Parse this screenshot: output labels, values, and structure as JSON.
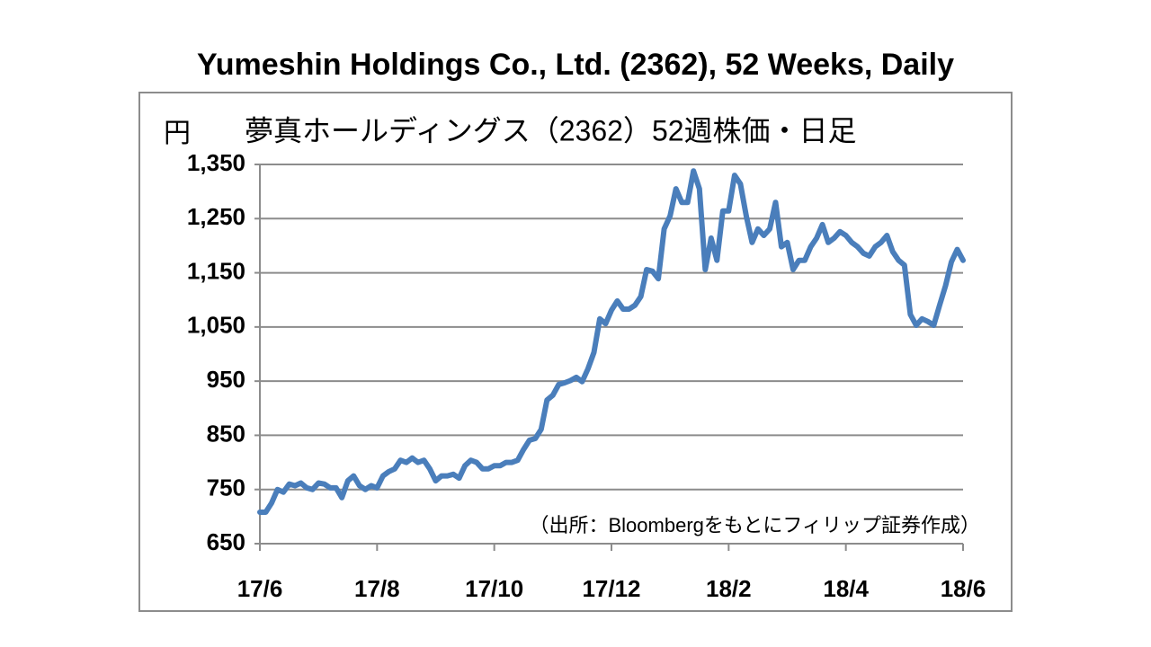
{
  "chart_data": {
    "type": "line",
    "title": "Yumeshin Holdings Co., Ltd. (2362), 52 Weeks, Daily",
    "subtitle": "夢真ホールディングス（2362）52週株価・日足",
    "y_label": "円",
    "annotation": "（出所：Bloombergをもとにフィリップ証券作成）",
    "color": "#4a7ebb",
    "grid": true,
    "ylim": [
      650,
      1350
    ],
    "yticks": [
      650,
      750,
      850,
      950,
      {
        "value": 1050,
        "label": "1,050"
      },
      {
        "value": 1150,
        "label": "1,150"
      },
      {
        "value": 1250,
        "label": "1,250"
      },
      {
        "value": 1350,
        "label": "1,350"
      }
    ],
    "categories": [
      "17/6",
      null,
      null,
      null,
      null,
      null,
      null,
      null,
      null,
      null,
      null,
      null,
      null,
      null,
      null,
      null,
      null,
      null,
      null,
      null,
      "17/8",
      null,
      null,
      null,
      null,
      null,
      null,
      null,
      null,
      null,
      null,
      null,
      null,
      null,
      null,
      null,
      null,
      null,
      null,
      null,
      "17/10",
      null,
      null,
      null,
      null,
      null,
      null,
      null,
      null,
      null,
      null,
      null,
      null,
      null,
      null,
      null,
      null,
      null,
      null,
      null,
      "17/12",
      null,
      null,
      null,
      null,
      null,
      null,
      null,
      null,
      null,
      null,
      null,
      null,
      null,
      null,
      null,
      null,
      null,
      null,
      null,
      "18/2",
      null,
      null,
      null,
      null,
      null,
      null,
      null,
      null,
      null,
      null,
      null,
      null,
      null,
      null,
      null,
      null,
      null,
      null,
      null,
      "18/4",
      null,
      null,
      null,
      null,
      null,
      null,
      null,
      null,
      null,
      null,
      null,
      null,
      null,
      null,
      null,
      null,
      null,
      null,
      null,
      "18/6"
    ],
    "values": [
      708,
      708,
      725,
      750,
      745,
      760,
      757,
      762,
      753,
      750,
      762,
      760,
      753,
      753,
      735,
      766,
      775,
      757,
      750,
      757,
      753,
      775,
      783,
      788,
      804,
      800,
      808,
      800,
      804,
      788,
      766,
      775,
      775,
      778,
      771,
      794,
      804,
      800,
      788,
      788,
      794,
      794,
      800,
      800,
      804,
      824,
      841,
      844,
      861,
      915,
      924,
      944,
      947,
      951,
      957,
      949,
      973,
      1003,
      1065,
      1056,
      1081,
      1098,
      1083,
      1083,
      1090,
      1106,
      1156,
      1153,
      1139,
      1231,
      1255,
      1305,
      1280,
      1280,
      1338,
      1305,
      1156,
      1214,
      1173,
      1264,
      1264,
      1330,
      1314,
      1255,
      1206,
      1231,
      1219,
      1231,
      1280,
      1198,
      1206,
      1156,
      1173,
      1173,
      1198,
      1214,
      1239,
      1206,
      1214,
      1226,
      1219,
      1206,
      1198,
      1186,
      1181,
      1198,
      1206,
      1219,
      1189,
      1173,
      1164,
      1073,
      1053,
      1065,
      1060,
      1053,
      1090,
      1126,
      1170,
      1193,
      1173
    ]
  }
}
